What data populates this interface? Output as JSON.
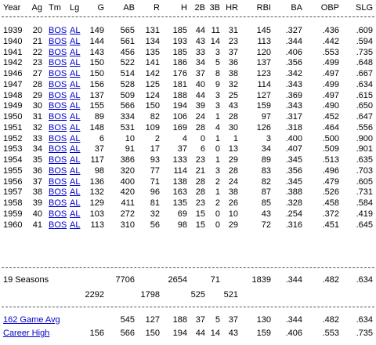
{
  "table": {
    "headers": [
      "Year",
      "Ag",
      "Tm",
      "Lg",
      "G",
      "AB",
      "R",
      "H",
      "2B",
      "3B",
      "HR",
      "RBI",
      "BA",
      "OBP",
      "SLG"
    ],
    "rows": [
      [
        "1939",
        "20",
        "BOS",
        "AL",
        "149",
        "565",
        "131",
        "185",
        "44",
        "11",
        "31",
        "145",
        ".327",
        ".436",
        ".609"
      ],
      [
        "1940",
        "21",
        "BOS",
        "AL",
        "144",
        "561",
        "134",
        "193",
        "43",
        "14",
        "23",
        "113",
        ".344",
        ".442",
        ".594"
      ],
      [
        "1941",
        "22",
        "BOS",
        "AL",
        "143",
        "456",
        "135",
        "185",
        "33",
        "3",
        "37",
        "120",
        ".406",
        ".553",
        ".735"
      ],
      [
        "1942",
        "23",
        "BOS",
        "AL",
        "150",
        "522",
        "141",
        "186",
        "34",
        "5",
        "36",
        "137",
        ".356",
        ".499",
        ".648"
      ],
      [
        "1946",
        "27",
        "BOS",
        "AL",
        "150",
        "514",
        "142",
        "176",
        "37",
        "8",
        "38",
        "123",
        ".342",
        ".497",
        ".667"
      ],
      [
        "1947",
        "28",
        "BOS",
        "AL",
        "156",
        "528",
        "125",
        "181",
        "40",
        "9",
        "32",
        "114",
        ".343",
        ".499",
        ".634"
      ],
      [
        "1948",
        "29",
        "BOS",
        "AL",
        "137",
        "509",
        "124",
        "188",
        "44",
        "3",
        "25",
        "127",
        ".369",
        ".497",
        ".615"
      ],
      [
        "1949",
        "30",
        "BOS",
        "AL",
        "155",
        "566",
        "150",
        "194",
        "39",
        "3",
        "43",
        "159",
        ".343",
        ".490",
        ".650"
      ],
      [
        "1950",
        "31",
        "BOS",
        "AL",
        "89",
        "334",
        "82",
        "106",
        "24",
        "1",
        "28",
        "97",
        ".317",
        ".452",
        ".647"
      ],
      [
        "1951",
        "32",
        "BOS",
        "AL",
        "148",
        "531",
        "109",
        "169",
        "28",
        "4",
        "30",
        "126",
        ".318",
        ".464",
        ".556"
      ],
      [
        "1952",
        "33",
        "BOS",
        "AL",
        "6",
        "10",
        "2",
        "4",
        "0",
        "1",
        "1",
        "3",
        ".400",
        ".500",
        ".900"
      ],
      [
        "1953",
        "34",
        "BOS",
        "AL",
        "37",
        "91",
        "17",
        "37",
        "6",
        "0",
        "13",
        "34",
        ".407",
        ".509",
        ".901"
      ],
      [
        "1954",
        "35",
        "BOS",
        "AL",
        "117",
        "386",
        "93",
        "133",
        "23",
        "1",
        "29",
        "89",
        ".345",
        ".513",
        ".635"
      ],
      [
        "1955",
        "36",
        "BOS",
        "AL",
        "98",
        "320",
        "77",
        "114",
        "21",
        "3",
        "28",
        "83",
        ".356",
        ".496",
        ".703"
      ],
      [
        "1956",
        "37",
        "BOS",
        "AL",
        "136",
        "400",
        "71",
        "138",
        "28",
        "2",
        "24",
        "82",
        ".345",
        ".479",
        ".605"
      ],
      [
        "1957",
        "38",
        "BOS",
        "AL",
        "132",
        "420",
        "96",
        "163",
        "28",
        "1",
        "38",
        "87",
        ".388",
        ".526",
        ".731"
      ],
      [
        "1958",
        "39",
        "BOS",
        "AL",
        "129",
        "411",
        "81",
        "135",
        "23",
        "2",
        "26",
        "85",
        ".328",
        ".458",
        ".584"
      ],
      [
        "1959",
        "40",
        "BOS",
        "AL",
        "103",
        "272",
        "32",
        "69",
        "15",
        "0",
        "10",
        "43",
        ".254",
        ".372",
        ".419"
      ],
      [
        "1960",
        "41",
        "BOS",
        "AL",
        "113",
        "310",
        "56",
        "98",
        "15",
        "0",
        "29",
        "72",
        ".316",
        ".451",
        ".645"
      ]
    ]
  },
  "totals": {
    "label": "19 Seasons",
    "G": "2292",
    "AB": "7706",
    "R": "1798",
    "H": "2654",
    "2B": "525",
    "3B": "71",
    "HR": "521",
    "RBI": "1839",
    "BA": ".344",
    "OBP": ".482",
    "SLG": ".634"
  },
  "footer": [
    {
      "label": "162 Game Avg",
      "values": [
        "",
        "545",
        "127",
        "188",
        "37",
        "5",
        "37",
        "130",
        ".344",
        ".482",
        ".634"
      ]
    },
    {
      "label": "Career High",
      "values": [
        "156",
        "566",
        "150",
        "194",
        "44",
        "14",
        "43",
        "159",
        ".406",
        ".553",
        ".735"
      ]
    }
  ]
}
